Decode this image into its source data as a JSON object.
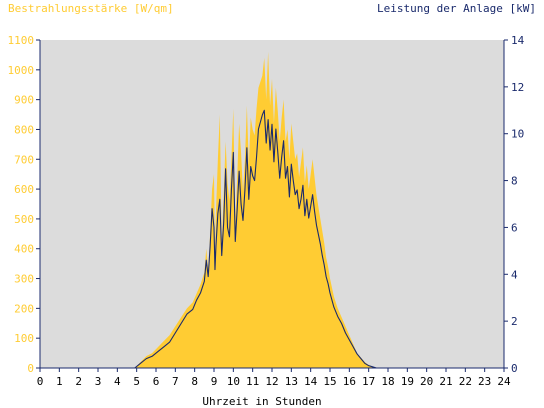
{
  "chart_data": {
    "type": "area",
    "title_left": "Bestrahlungsstärke [W/qm]",
    "title_right": "Leistung der Anlage [kW]",
    "xlabel": "Uhrzeit in Stunden",
    "x_ticks": [
      "0",
      "1",
      "2",
      "3",
      "4",
      "5",
      "6",
      "7",
      "8",
      "9",
      "10",
      "11",
      "12",
      "13",
      "14",
      "15",
      "16",
      "17",
      "18",
      "19",
      "20",
      "21",
      "22",
      "23",
      "24"
    ],
    "xlim": [
      0,
      24
    ],
    "y_left": {
      "ticks": [
        "0",
        "100",
        "200",
        "300",
        "400",
        "500",
        "600",
        "700",
        "800",
        "900",
        "1000",
        "1100"
      ],
      "lim": [
        0,
        1100
      ]
    },
    "y_right": {
      "ticks": [
        "0",
        "2",
        "4",
        "6",
        "8",
        "10",
        "12",
        "14"
      ],
      "lim": [
        0,
        14
      ]
    },
    "colors": {
      "plot_bg": "#dcdcdc",
      "area_fill": "#ffcc33",
      "line": "#1a2a6c",
      "left_axis_text": "#ffcc33",
      "right_axis_text": "#1a2a6c",
      "x_axis_text": "#000000"
    },
    "series": [
      {
        "x": [
          4.9,
          5.2,
          5.5,
          5.8,
          6.1,
          6.4,
          6.7,
          7.0,
          7.3,
          7.6,
          7.9,
          8.1,
          8.3,
          8.5,
          8.6,
          8.7,
          8.8,
          8.9,
          9.0,
          9.05,
          9.1,
          9.2,
          9.3,
          9.4,
          9.5,
          9.6,
          9.7,
          9.8,
          9.9,
          10.0,
          10.1,
          10.2,
          10.3,
          10.4,
          10.5,
          10.6,
          10.7,
          10.8,
          10.9,
          11.0,
          11.1,
          11.2,
          11.3,
          11.4,
          11.5,
          11.6,
          11.7,
          11.8,
          11.9,
          12.0,
          12.1,
          12.2,
          12.3,
          12.4,
          12.5,
          12.6,
          12.7,
          12.8,
          12.9,
          13.0,
          13.1,
          13.2,
          13.3,
          13.4,
          13.5,
          13.6,
          13.7,
          13.8,
          13.9,
          14.0,
          14.1,
          14.2,
          14.3,
          14.4,
          14.5,
          14.6,
          14.7,
          14.8,
          14.9,
          15.0,
          15.2,
          15.4,
          15.6,
          15.8,
          16.0,
          16.2,
          16.4,
          16.6,
          16.8,
          17.0,
          17.2,
          17.4,
          17.6,
          17.8,
          18.0,
          18.3,
          18.6,
          18.9,
          19.2,
          19.5,
          19.8,
          20.1,
          20.4
        ],
        "values": [
          0,
          20,
          40,
          50,
          70,
          90,
          110,
          140,
          170,
          200,
          220,
          250,
          280,
          320,
          400,
          330,
          450,
          600,
          650,
          380,
          520,
          700,
          850,
          420,
          580,
          760,
          620,
          560,
          700,
          870,
          490,
          640,
          820,
          720,
          590,
          700,
          880,
          680,
          840,
          800,
          780,
          870,
          940,
          960,
          980,
          1040,
          900,
          1060,
          880,
          970,
          820,
          940,
          860,
          760,
          840,
          900,
          760,
          800,
          700,
          820,
          760,
          700,
          720,
          640,
          690,
          740,
          620,
          680,
          600,
          650,
          700,
          640,
          580,
          540,
          500,
          460,
          420,
          370,
          340,
          300,
          240,
          200,
          170,
          140,
          110,
          80,
          50,
          35,
          20,
          10,
          5,
          0,
          0,
          0,
          0,
          0,
          0,
          0,
          0,
          0,
          0,
          0,
          0
        ],
        "display_values": [
          0,
          20,
          40,
          50,
          70,
          90,
          110,
          140,
          170,
          200,
          220,
          250,
          280,
          320,
          400,
          330,
          450,
          600,
          650,
          380,
          520,
          700,
          850,
          420,
          580,
          760,
          620,
          560,
          700,
          870,
          490,
          640,
          820,
          720,
          590,
          700,
          880,
          680,
          840,
          800,
          780,
          870,
          940,
          960,
          980,
          1040,
          900,
          1060,
          880,
          970,
          820,
          940,
          860,
          760,
          840,
          900,
          760,
          800,
          700,
          820,
          760,
          700,
          720,
          640,
          690,
          740,
          620,
          680,
          600,
          650,
          700,
          640,
          580,
          540,
          500,
          460,
          420,
          370,
          340,
          300,
          240,
          200,
          170,
          140,
          110,
          80,
          50,
          35,
          20,
          10,
          5,
          0,
          0,
          0,
          0,
          0,
          0,
          0,
          0,
          0,
          0,
          0,
          0
        ]
      },
      {
        "x": [
          4.9,
          5.2,
          5.5,
          5.8,
          6.1,
          6.4,
          6.7,
          7.0,
          7.3,
          7.6,
          7.9,
          8.1,
          8.3,
          8.5,
          8.6,
          8.7,
          8.8,
          8.9,
          9.0,
          9.05,
          9.1,
          9.2,
          9.3,
          9.4,
          9.5,
          9.6,
          9.7,
          9.8,
          9.9,
          10.0,
          10.1,
          10.2,
          10.3,
          10.4,
          10.5,
          10.6,
          10.7,
          10.8,
          10.9,
          11.0,
          11.1,
          11.2,
          11.3,
          11.4,
          11.5,
          11.6,
          11.7,
          11.8,
          11.9,
          12.0,
          12.1,
          12.2,
          12.3,
          12.4,
          12.5,
          12.6,
          12.7,
          12.8,
          12.9,
          13.0,
          13.1,
          13.2,
          13.3,
          13.4,
          13.5,
          13.6,
          13.7,
          13.8,
          13.9,
          14.0,
          14.1,
          14.2,
          14.3,
          14.4,
          14.5,
          14.6,
          14.7,
          14.8,
          14.9,
          15.0,
          15.2,
          15.4,
          15.6,
          15.8,
          16.0,
          16.2,
          16.4,
          16.6,
          16.8,
          17.0,
          17.2,
          17.4,
          17.6,
          17.8,
          18.0,
          18.3,
          18.6,
          18.9,
          19.2,
          19.5,
          19.8,
          20.1,
          20.4
        ],
        "values": [
          0,
          0.2,
          0.4,
          0.5,
          0.7,
          0.9,
          1.1,
          1.5,
          1.9,
          2.3,
          2.5,
          2.9,
          3.2,
          3.7,
          4.6,
          3.9,
          5.2,
          6.8,
          6.0,
          4.2,
          5.2,
          6.6,
          7.2,
          4.8,
          6.2,
          8.5,
          6.0,
          5.6,
          7.6,
          9.2,
          5.4,
          6.8,
          8.4,
          7.0,
          6.3,
          7.6,
          9.4,
          7.2,
          8.6,
          8.2,
          8.0,
          9.0,
          10.2,
          10.5,
          10.8,
          11.0,
          9.6,
          10.6,
          9.3,
          10.4,
          8.8,
          10.2,
          9.2,
          8.1,
          9.0,
          9.7,
          8.1,
          8.6,
          7.3,
          8.7,
          8.0,
          7.4,
          7.6,
          6.8,
          7.2,
          7.8,
          6.5,
          7.2,
          6.4,
          6.9,
          7.4,
          6.7,
          6.1,
          5.7,
          5.3,
          4.8,
          4.4,
          3.9,
          3.6,
          3.2,
          2.6,
          2.2,
          1.9,
          1.5,
          1.2,
          0.9,
          0.6,
          0.4,
          0.2,
          0.1,
          0.05,
          0,
          0,
          0,
          0,
          0,
          0,
          0,
          0,
          0,
          0,
          0,
          0
        ],
        "display_values": [
          0,
          0.2,
          0.4,
          0.5,
          0.7,
          0.9,
          1.1,
          1.5,
          1.9,
          2.3,
          2.5,
          2.9,
          3.2,
          3.7,
          4.6,
          3.9,
          5.2,
          6.8,
          6.0,
          4.2,
          5.2,
          6.6,
          7.2,
          4.8,
          6.2,
          8.5,
          6.0,
          5.6,
          7.6,
          9.2,
          5.4,
          6.8,
          8.4,
          7.0,
          6.3,
          7.6,
          9.4,
          7.2,
          8.6,
          8.2,
          8.0,
          9.0,
          10.2,
          10.5,
          10.8,
          11.0,
          9.6,
          10.6,
          9.3,
          10.4,
          8.8,
          10.2,
          9.2,
          8.1,
          9.0,
          9.7,
          8.1,
          8.6,
          7.3,
          8.7,
          8.0,
          7.4,
          7.6,
          6.8,
          7.2,
          7.8,
          6.5,
          7.2,
          6.4,
          6.9,
          7.4,
          6.7,
          6.1,
          5.7,
          5.3,
          4.8,
          4.4,
          3.9,
          3.6,
          3.2,
          2.6,
          2.2,
          1.9,
          1.5,
          1.2,
          0.9,
          0.6,
          0.4,
          0.2,
          0.1,
          0.05,
          0,
          0,
          0,
          0,
          0,
          0,
          0,
          0,
          0,
          0,
          0,
          0
        ]
      }
    ]
  }
}
